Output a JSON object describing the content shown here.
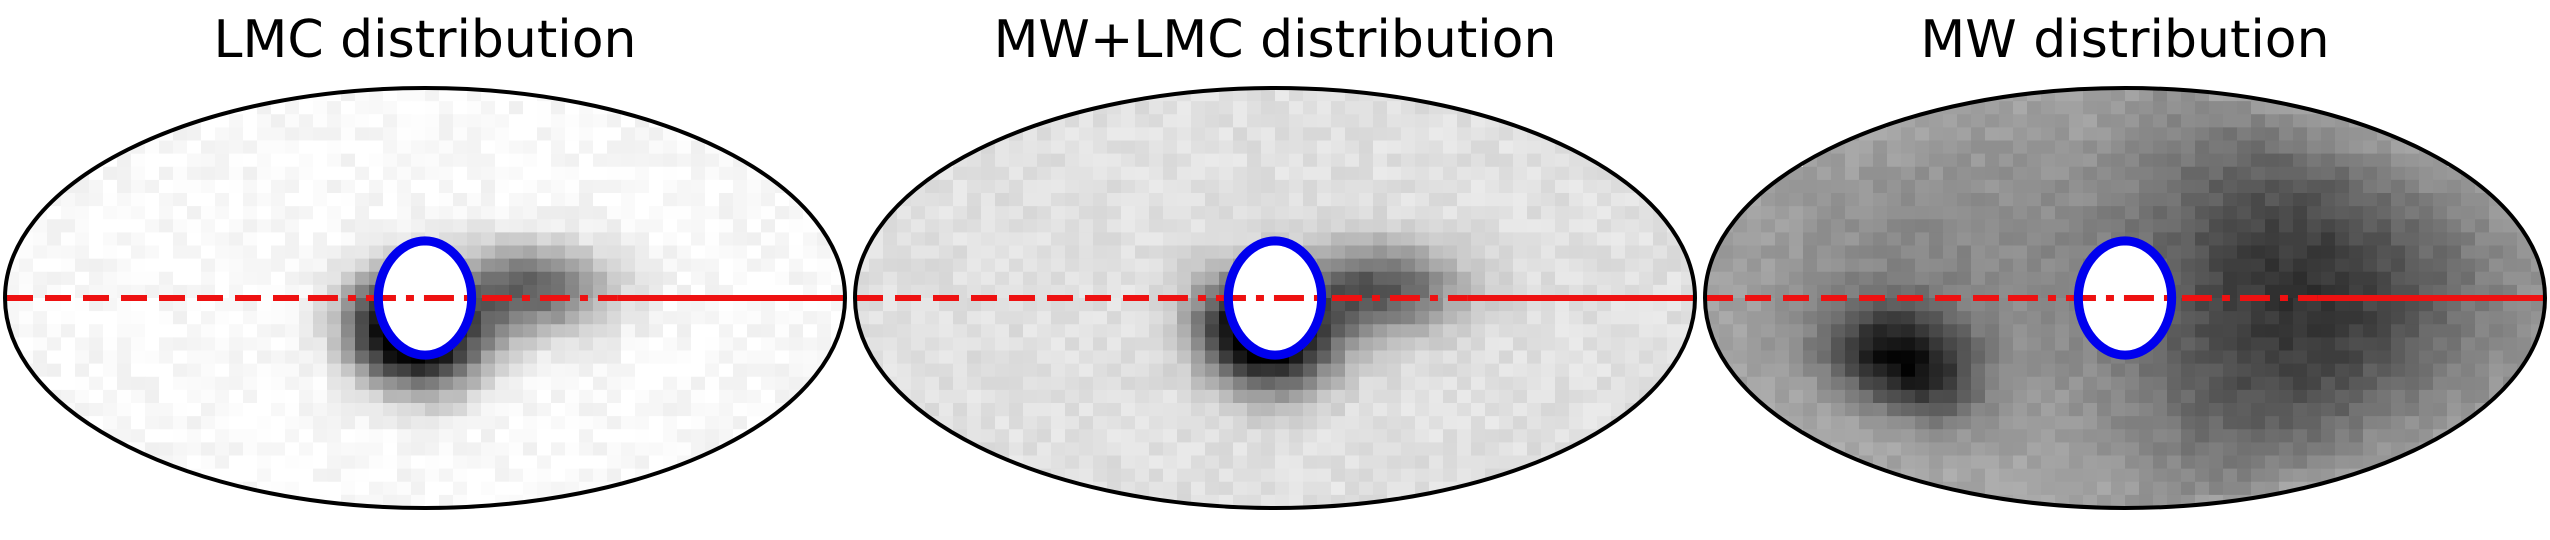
{
  "chart_data": [
    {
      "type": "heatmap",
      "projection": "mollweide",
      "title": "LMC distribution",
      "colormap": "greys",
      "color_low": "#ffffff",
      "color_high": "#000000",
      "background_level": 0.02,
      "density_blobs": [
        {
          "lon": -2,
          "lat": -15,
          "sigma_lon": 18,
          "sigma_lat": 13,
          "amp": 0.95
        },
        {
          "lon": -45,
          "lat": 3,
          "sigma_lon": 24,
          "sigma_lat": 11,
          "amp": 0.6
        },
        {
          "lon": 20,
          "lat": -9,
          "sigma_lon": 13,
          "sigma_lat": 13,
          "amp": 0.55
        }
      ],
      "masked_circle": {
        "lon": 0,
        "lat": 0,
        "radius_deg": 20,
        "edge_color": "#0000ee"
      },
      "reference_line": {
        "lat": 0,
        "color": "#ee1111",
        "style_left": "dashed",
        "style_mid": "dashdot",
        "style_right": "solid"
      },
      "border_color": "#000000"
    },
    {
      "type": "heatmap",
      "projection": "mollweide",
      "title": "MW+LMC distribution",
      "colormap": "greys",
      "color_low": "#ffffff",
      "color_high": "#000000",
      "background_level": 0.12,
      "density_blobs": [
        {
          "lon": -2,
          "lat": -15,
          "sigma_lon": 18,
          "sigma_lat": 13,
          "amp": 0.9
        },
        {
          "lon": -45,
          "lat": 3,
          "sigma_lon": 24,
          "sigma_lat": 11,
          "amp": 0.55
        },
        {
          "lon": 20,
          "lat": -9,
          "sigma_lon": 13,
          "sigma_lat": 13,
          "amp": 0.45
        }
      ],
      "masked_circle": {
        "lon": 0,
        "lat": 0,
        "radius_deg": 20,
        "edge_color": "#0000ee"
      },
      "reference_line": {
        "lat": 0,
        "color": "#ee1111",
        "style_left": "dashed",
        "style_mid": "dashdot",
        "style_right": "solid"
      },
      "border_color": "#000000"
    },
    {
      "type": "heatmap",
      "projection": "mollweide",
      "title": "MW distribution",
      "colormap": "greys",
      "color_low": "#ffffff",
      "color_high": "#000000",
      "background_level": 0.35,
      "density_blobs": [
        {
          "lon": -75,
          "lat": 0,
          "sigma_lon": 55,
          "sigma_lat": 45,
          "amp": 0.45
        },
        {
          "lon": 100,
          "lat": -22,
          "sigma_lon": 22,
          "sigma_lat": 14,
          "amp": 0.6
        },
        {
          "lon": 90,
          "lat": 20,
          "sigma_lon": 50,
          "sigma_lat": 30,
          "amp": 0.1
        }
      ],
      "masked_circle": {
        "lon": 0,
        "lat": 0,
        "radius_deg": 20,
        "edge_color": "#0000ee"
      },
      "reference_line": {
        "lat": 0,
        "color": "#ee1111",
        "style_left": "dashed",
        "style_mid": "dashdot",
        "style_right": "solid"
      },
      "border_color": "#000000"
    }
  ]
}
